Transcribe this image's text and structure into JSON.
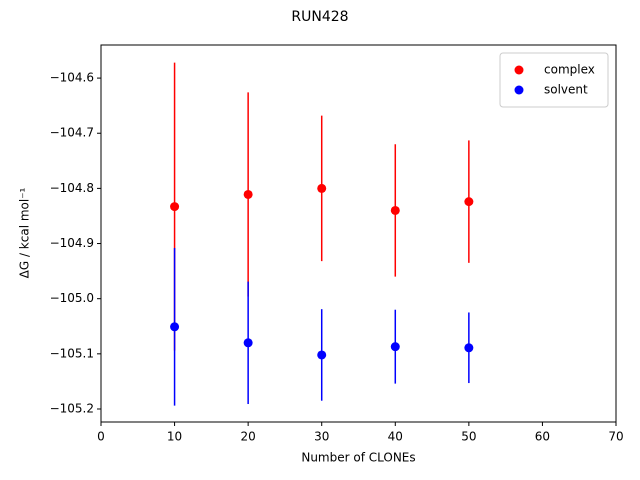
{
  "chart_data": {
    "type": "scatter",
    "title": "RUN428",
    "x_label": "Number of CLONEs",
    "y_label": "ΔG / kcal mol⁻¹",
    "x": [
      10,
      20,
      30,
      40,
      50
    ],
    "series": [
      {
        "name": "complex",
        "color": "#ff0000",
        "values": [
          -104.833,
          -104.811,
          -104.8,
          -104.84,
          -104.824
        ],
        "errors": [
          0.261,
          0.185,
          0.132,
          0.12,
          0.111
        ]
      },
      {
        "name": "solvent",
        "color": "#0000ff",
        "values": [
          -105.051,
          -105.08,
          -105.102,
          -105.087,
          -105.089
        ],
        "errors": [
          0.143,
          0.111,
          0.083,
          0.067,
          0.064
        ]
      }
    ],
    "xlim": [
      0,
      70
    ],
    "xticks": [
      0,
      10,
      20,
      30,
      40,
      50,
      60,
      70
    ],
    "ylim": [
      -105.2236,
      -104.54
    ],
    "yticks": [
      {
        "value": -104.6,
        "label": "−104.6"
      },
      {
        "value": -104.7,
        "label": "−104.7"
      },
      {
        "value": -104.8,
        "label": "−104.8"
      },
      {
        "value": -104.9,
        "label": "−104.9"
      },
      {
        "value": -105.0,
        "label": "−105.0"
      },
      {
        "value": -105.1,
        "label": "−105.1"
      },
      {
        "value": -105.2,
        "label": "−105.2"
      }
    ],
    "legend": "upper right"
  }
}
